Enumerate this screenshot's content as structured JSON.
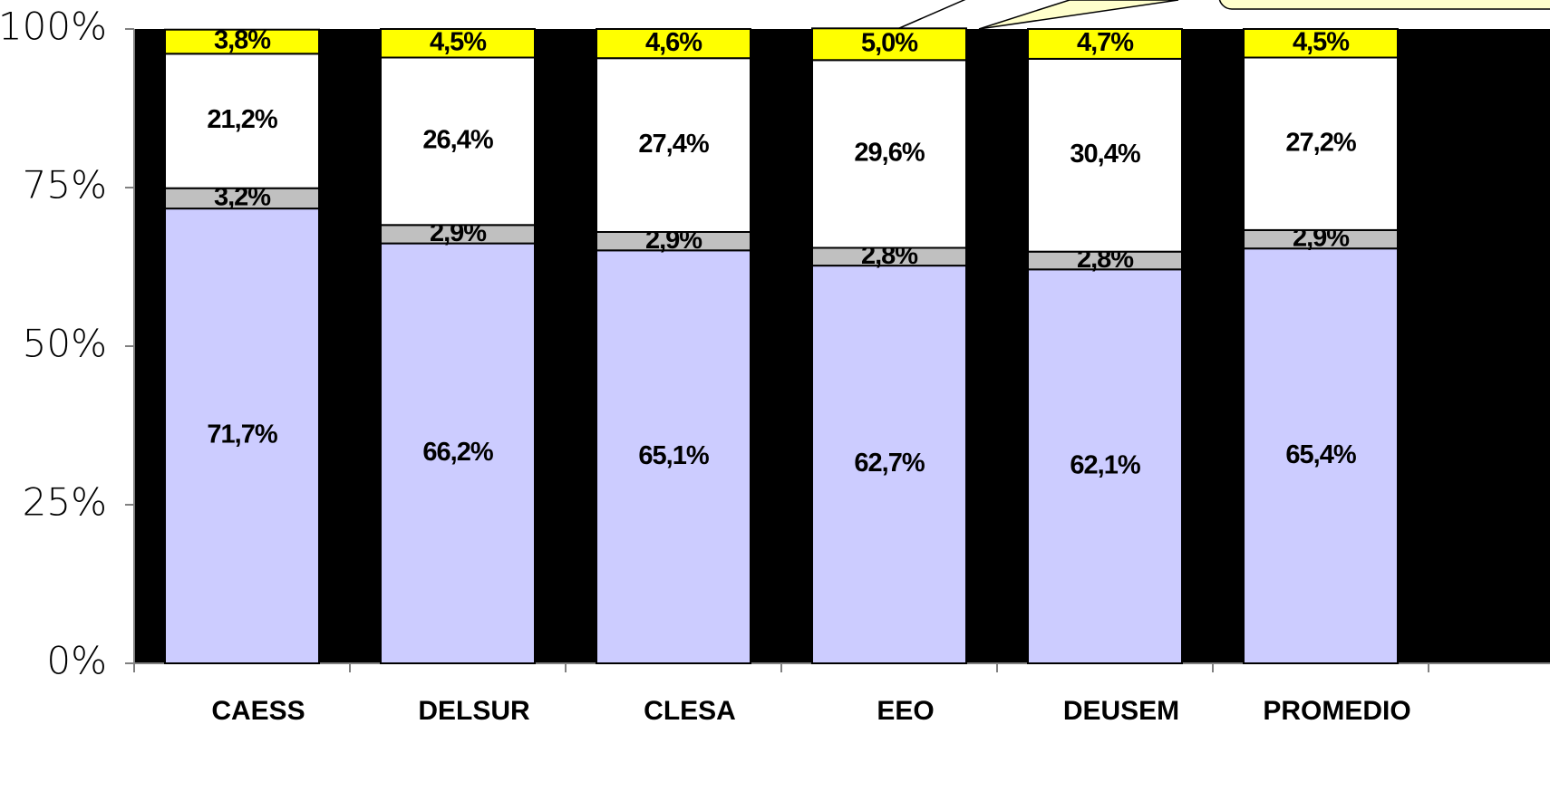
{
  "chart_data": {
    "type": "stacked_bar",
    "categories": [
      "CAESS",
      "DELSUR",
      "CLESA",
      "EEO",
      "DEUSEM",
      "PROMEDIO"
    ],
    "series": [
      {
        "color": "#ccccff",
        "values": [
          71.7,
          66.2,
          65.1,
          62.7,
          62.1,
          65.4
        ],
        "value_labels": [
          "71,7%",
          "66,2%",
          "65,1%",
          "62,7%",
          "62,1%",
          "65,4%"
        ]
      },
      {
        "color": "#c0c0c0",
        "values": [
          3.2,
          2.9,
          2.9,
          2.8,
          2.8,
          2.9
        ],
        "value_labels": [
          "3,2%",
          "2,9%",
          "2,9%",
          "2,8%",
          "2,8%",
          "2,9%"
        ]
      },
      {
        "color": "#ffffff",
        "values": [
          21.2,
          26.4,
          27.4,
          29.6,
          30.4,
          27.2
        ],
        "value_labels": [
          "21,2%",
          "26,4%",
          "27,4%",
          "29,6%",
          "30,4%",
          "27,2%"
        ]
      },
      {
        "color": "#ffff00",
        "values": [
          3.8,
          4.5,
          4.6,
          5.0,
          4.7,
          4.5
        ],
        "value_labels": [
          "3,8%",
          "4,5%",
          "4,6%",
          "5,0%",
          "4,7%",
          "4,5%"
        ]
      }
    ],
    "ylim": [
      0,
      100
    ],
    "yticks": [
      {
        "value": 0,
        "label": "0%"
      },
      {
        "value": 25,
        "label": "25%"
      },
      {
        "value": 50,
        "label": "50%"
      },
      {
        "value": 75,
        "label": "75%"
      },
      {
        "value": 100,
        "label": "100%"
      }
    ],
    "plot_background": "#000000"
  }
}
